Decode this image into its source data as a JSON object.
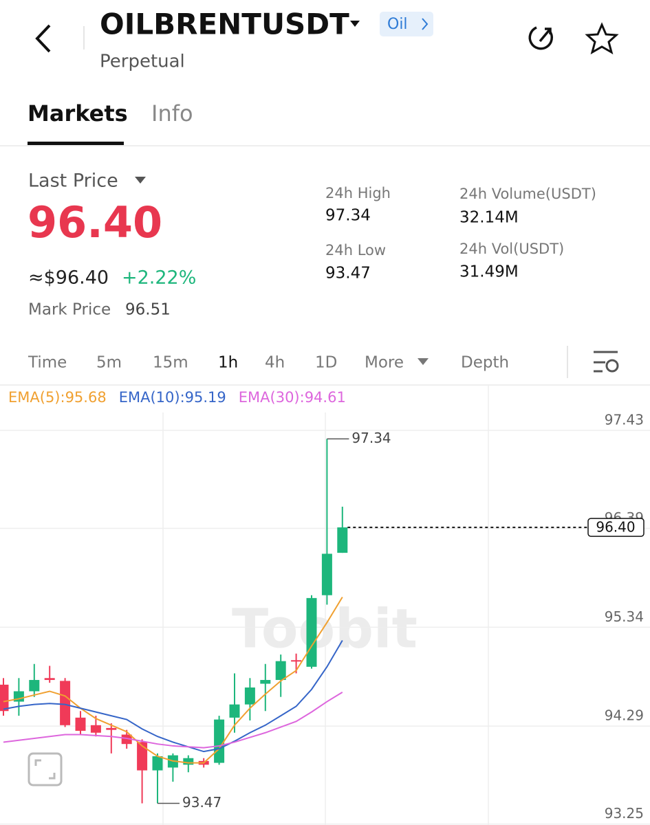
{
  "header": {
    "title": "OILBRENTUSDT",
    "badge": "Oil",
    "subtitle": "Perpetual"
  },
  "tabs": [
    "Markets",
    "Info"
  ],
  "price": {
    "label": "Last Price",
    "last": "96.40",
    "approx": "≈$96.40",
    "change": "+2.22%",
    "mark_label": "Mark Price",
    "mark": "96.51"
  },
  "stats": [
    {
      "label": "24h High",
      "value": "97.34"
    },
    {
      "label": "24h Volume(USDT)",
      "value": "32.14M"
    },
    {
      "label": "24h Low",
      "value": "93.47"
    },
    {
      "label": "24h Vol(USDT)",
      "value": "31.49M"
    }
  ],
  "intervals": [
    "Time",
    "5m",
    "15m",
    "1h",
    "4h",
    "1D",
    "More",
    "Depth"
  ],
  "watermark": "Toobit",
  "chart_data": {
    "type": "candlestick",
    "categories": [
      null,
      null,
      null,
      null,
      null,
      null,
      null,
      null,
      null,
      null,
      null,
      null,
      null,
      null,
      null,
      null,
      null,
      null,
      null,
      null,
      null,
      null,
      null
    ],
    "open": [
      94.73,
      94.55,
      94.66,
      94.8,
      94.77,
      94.38,
      94.3,
      94.27,
      94.2,
      94.12,
      93.82,
      93.85,
      93.88,
      93.92,
      93.9,
      94.38,
      94.52,
      94.74,
      94.78,
      94.99,
      94.92,
      95.68,
      96.13
    ],
    "high": [
      94.8,
      94.8,
      94.95,
      94.93,
      94.8,
      94.45,
      94.4,
      94.32,
      94.25,
      94.15,
      94.0,
      94.0,
      93.98,
      93.95,
      94.4,
      94.85,
      94.8,
      94.95,
      95.05,
      95.06,
      95.68,
      97.34,
      96.62
    ],
    "low": [
      94.4,
      94.4,
      94.6,
      94.75,
      94.28,
      94.2,
      94.18,
      94.0,
      94.05,
      93.47,
      93.47,
      93.7,
      93.8,
      93.85,
      93.88,
      94.22,
      94.35,
      94.45,
      94.6,
      94.85,
      94.9,
      95.58,
      96.13
    ],
    "close": [
      94.45,
      94.66,
      94.78,
      94.78,
      94.3,
      94.24,
      94.22,
      94.25,
      94.1,
      93.82,
      93.97,
      93.98,
      93.95,
      93.88,
      94.36,
      94.52,
      94.7,
      94.78,
      94.98,
      94.98,
      95.65,
      96.12,
      96.4
    ],
    "up_color": "#1db67c",
    "down_color": "#f03a58",
    "series": [
      {
        "name": "EMA(5):95.68",
        "color": "#f0a030",
        "values": [
          94.55,
          94.58,
          94.62,
          94.66,
          94.61,
          94.48,
          94.37,
          94.3,
          94.23,
          94.08,
          93.97,
          93.92,
          93.9,
          93.9,
          94.05,
          94.3,
          94.48,
          94.63,
          94.77,
          94.88,
          95.14,
          95.39,
          95.66
        ]
      },
      {
        "name": "EMA(10):95.19",
        "color": "#3565c8",
        "values": [
          94.47,
          94.5,
          94.52,
          94.53,
          94.52,
          94.48,
          94.44,
          94.4,
          94.36,
          94.26,
          94.18,
          94.12,
          94.07,
          94.02,
          94.05,
          94.13,
          94.22,
          94.3,
          94.4,
          94.5,
          94.68,
          94.92,
          95.2
        ]
      },
      {
        "name": "EMA(30):94.61",
        "color": "#dd66dd",
        "values": [
          94.12,
          94.14,
          94.16,
          94.18,
          94.2,
          94.2,
          94.19,
          94.18,
          94.16,
          94.13,
          94.1,
          94.08,
          94.07,
          94.06,
          94.08,
          94.12,
          94.17,
          94.22,
          94.28,
          94.34,
          94.44,
          94.55,
          94.65
        ]
      }
    ],
    "high_mark": {
      "value": 97.34,
      "index": 21
    },
    "low_mark": {
      "value": 93.47,
      "index": 10
    },
    "last_price": {
      "value": 96.4,
      "label": "96.40"
    },
    "ylim": [
      93.24,
      97.62
    ],
    "yticks": [
      97.43,
      96.39,
      95.34,
      94.29,
      93.25
    ],
    "grid": true
  }
}
